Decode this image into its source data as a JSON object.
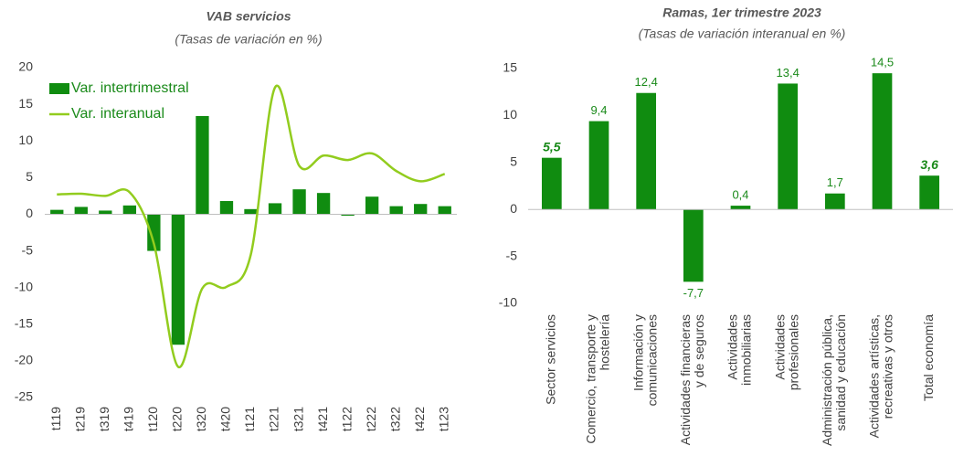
{
  "chart_data": [
    {
      "type": "combo",
      "title": "VAB servicios",
      "subtitle": "(Tasas de variación en %)",
      "categories": [
        "t119",
        "t219",
        "t319",
        "t419",
        "t120",
        "t220",
        "t320",
        "t420",
        "t121",
        "t221",
        "t321",
        "t421",
        "t122",
        "t222",
        "t322",
        "t422",
        "t123"
      ],
      "series": [
        {
          "name": "Var. intertrimestral",
          "type": "bar",
          "color": "#108c10",
          "values": [
            0.6,
            1.0,
            0.5,
            1.2,
            -5.0,
            -17.8,
            13.4,
            1.8,
            0.7,
            1.5,
            3.4,
            2.9,
            -0.2,
            2.4,
            1.1,
            1.4,
            1.1
          ]
        },
        {
          "name": "Var. interanual",
          "type": "line",
          "color": "#92cc1e",
          "values": [
            2.7,
            2.8,
            2.5,
            3.0,
            -4.0,
            -20.8,
            -10.1,
            -9.9,
            -5.5,
            17.3,
            6.6,
            8.0,
            7.4,
            8.3,
            5.9,
            4.5,
            5.5
          ]
        }
      ],
      "ylim": [
        -25,
        20
      ],
      "yticks": [
        -25,
        -20,
        -15,
        -10,
        -5,
        0,
        5,
        10,
        15,
        20
      ],
      "legend": "upper left"
    },
    {
      "type": "bar",
      "title": "Ramas, 1er trimestre 2023",
      "subtitle": "(Tasas de variación interanual en %)",
      "categories": [
        [
          "Sector servicios"
        ],
        [
          "Comercio, transporte y",
          "hostelería"
        ],
        [
          "Información y",
          "comunicaciones"
        ],
        [
          "Actividades financieras",
          "y de seguros"
        ],
        [
          "Actividades",
          "inmobiliarias"
        ],
        [
          "Actividades",
          "profesionales"
        ],
        [
          "Administración pública,",
          "sanidad y educación"
        ],
        [
          "Actividades artísticas,",
          "recreativas y otros"
        ],
        [
          "Total economía"
        ]
      ],
      "values": [
        5.5,
        9.4,
        12.4,
        -7.7,
        0.4,
        13.4,
        1.7,
        14.5,
        3.6
      ],
      "value_labels": [
        "5,5",
        "9,4",
        "12,4",
        "-7,7",
        "0,4",
        "13,4",
        "1,7",
        "14,5",
        "3,6"
      ],
      "color": "#108c10",
      "ylim": [
        -10,
        15
      ],
      "yticks": [
        -10,
        -5,
        0,
        5,
        10,
        15
      ]
    }
  ]
}
